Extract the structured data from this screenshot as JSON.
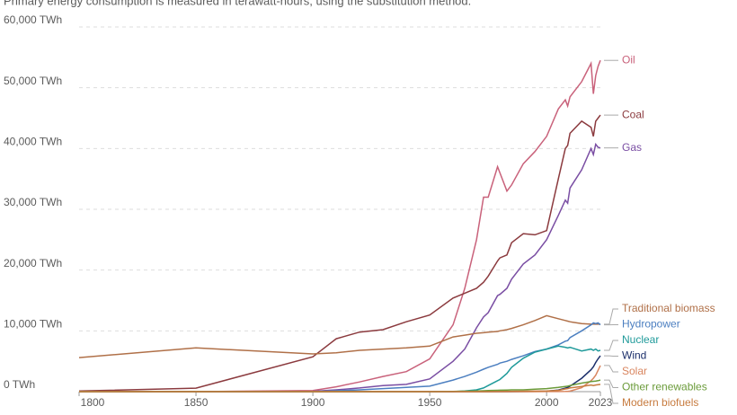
{
  "chart_data": {
    "type": "line",
    "subtitle": "Primary energy consumption is measured in terawatt-hours, using the substitution method.",
    "x": [
      1800,
      1850,
      1900,
      1910,
      1920,
      1930,
      1940,
      1950,
      1960,
      1965,
      1970,
      1973,
      1975,
      1979,
      1980,
      1983,
      1985,
      1990,
      1995,
      2000,
      2005,
      2008,
      2009,
      2010,
      2015,
      2019,
      2020,
      2021,
      2022,
      2023
    ],
    "xlim": [
      1800,
      2023
    ],
    "xticks": [
      1800,
      1850,
      1900,
      1950,
      2000,
      2023
    ],
    "ylim": [
      0,
      60000
    ],
    "yticks": [
      {
        "value": 0,
        "label": "0 TWh"
      },
      {
        "value": 10000,
        "label": "10,000 TWh"
      },
      {
        "value": 20000,
        "label": "20,000 TWh"
      },
      {
        "value": 30000,
        "label": "30,000 TWh"
      },
      {
        "value": 40000,
        "label": "40,000 TWh"
      },
      {
        "value": 50000,
        "label": "50,000 TWh"
      },
      {
        "value": 60000,
        "label": "60,000 TWh"
      }
    ],
    "grid": true,
    "series": [
      {
        "name": "Oil",
        "color": "#c9627b",
        "values": [
          0,
          0,
          181,
          800,
          1600,
          2500,
          3300,
          5400,
          11000,
          17000,
          25000,
          32000,
          32000,
          37000,
          36000,
          33000,
          34000,
          37500,
          39500,
          42000,
          46500,
          48000,
          47000,
          48500,
          51000,
          54000,
          49000,
          52000,
          53500,
          54500
        ]
      },
      {
        "name": "Coal",
        "color": "#8b3a3e",
        "values": [
          97,
          569,
          5728,
          8700,
          9800,
          10200,
          11500,
          12600,
          15400,
          16200,
          17000,
          18000,
          19000,
          21500,
          22000,
          22500,
          24500,
          26000,
          25800,
          26500,
          35000,
          40000,
          40500,
          42500,
          44500,
          43500,
          42000,
          44500,
          45000,
          45500
        ]
      },
      {
        "name": "Gas",
        "color": "#7a4ea3",
        "values": [
          0,
          0,
          64,
          300,
          600,
          1000,
          1200,
          2100,
          5000,
          7000,
          10500,
          12300,
          13000,
          15800,
          16000,
          17000,
          18500,
          21000,
          22500,
          25000,
          29000,
          31500,
          31000,
          33500,
          36500,
          40000,
          39000,
          40700,
          40200,
          40100
        ]
      },
      {
        "name": "Traditional biomass",
        "color": "#b07048",
        "values": [
          5600,
          7200,
          6200,
          6400,
          6800,
          7000,
          7200,
          7500,
          9000,
          9300,
          9600,
          9700,
          9800,
          9900,
          10000,
          10200,
          10400,
          11000,
          11700,
          12500,
          12000,
          11700,
          11600,
          11500,
          11200,
          11100,
          11100,
          11100,
          11100,
          11100
        ]
      },
      {
        "name": "Hydropower",
        "color": "#4c7fc0",
        "values": [
          0,
          0,
          0,
          150,
          300,
          500,
          700,
          900,
          1900,
          2500,
          3200,
          3700,
          4000,
          4500,
          4700,
          5000,
          5300,
          5900,
          6600,
          7000,
          7700,
          8300,
          8400,
          8900,
          10000,
          11000,
          11300,
          11200,
          11300,
          11000
        ]
      },
      {
        "name": "Nuclear",
        "color": "#1f9a9a",
        "values": [
          0,
          0,
          0,
          0,
          0,
          0,
          0,
          0,
          0,
          100,
          300,
          600,
          1000,
          1800,
          2000,
          3000,
          4000,
          5500,
          6500,
          7000,
          7500,
          7300,
          7200,
          7300,
          6700,
          7000,
          6800,
          7000,
          6700,
          6800
        ]
      },
      {
        "name": "Wind",
        "color": "#1c2f6b",
        "values": [
          0,
          0,
          0,
          0,
          0,
          0,
          0,
          0,
          0,
          0,
          0,
          0,
          0,
          0,
          0,
          0,
          0,
          10,
          50,
          80,
          270,
          570,
          700,
          900,
          2200,
          3600,
          4100,
          4800,
          5400,
          5900
        ]
      },
      {
        "name": "Solar",
        "color": "#d9855f",
        "values": [
          0,
          0,
          0,
          0,
          0,
          0,
          0,
          0,
          0,
          0,
          0,
          0,
          0,
          0,
          0,
          0,
          0,
          0,
          0,
          10,
          20,
          30,
          50,
          90,
          650,
          1800,
          2200,
          2700,
          3500,
          4300
        ]
      },
      {
        "name": "Other renewables",
        "color": "#6b9b3a",
        "values": [
          0,
          0,
          0,
          0,
          0,
          0,
          0,
          0,
          50,
          80,
          120,
          150,
          170,
          220,
          240,
          270,
          290,
          300,
          400,
          500,
          700,
          850,
          900,
          1000,
          1400,
          1650,
          1700,
          1750,
          1800,
          1900
        ]
      },
      {
        "name": "Modern biofuels",
        "color": "#c77b3f",
        "values": [
          0,
          0,
          0,
          0,
          0,
          0,
          0,
          0,
          0,
          0,
          0,
          0,
          0,
          10,
          20,
          40,
          60,
          80,
          90,
          100,
          200,
          450,
          500,
          600,
          850,
          1100,
          1000,
          1100,
          1150,
          1200
        ]
      }
    ]
  }
}
